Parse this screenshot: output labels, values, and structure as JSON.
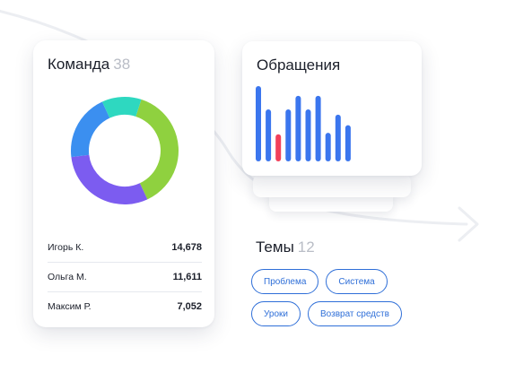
{
  "team": {
    "title": "Команда",
    "count": "38",
    "members": [
      {
        "name": "Игорь К.",
        "value": "14,678"
      },
      {
        "name": "Ольга М.",
        "value": "11,611"
      },
      {
        "name": "Максим Р.",
        "value": "7,052"
      }
    ],
    "donut": {
      "colors": [
        "#8fd13f",
        "#7c5cf0",
        "#3b8ff0",
        "#2ed8c0"
      ],
      "shares": [
        0.38,
        0.3,
        0.2,
        0.12
      ]
    }
  },
  "requests": {
    "title": "Обращения",
    "bars": [
      1.0,
      0.69,
      0.36,
      0.69,
      0.87,
      0.69,
      0.87,
      0.38,
      0.62,
      0.48
    ],
    "highlight_index": 2,
    "bar_color": "#3b76ee",
    "highlight_color": "#f2405a"
  },
  "topics": {
    "title": "Темы",
    "count": "12",
    "tags": [
      [
        "Проблема",
        "Система"
      ],
      [
        "Уроки",
        "Возврат средств"
      ]
    ]
  }
}
